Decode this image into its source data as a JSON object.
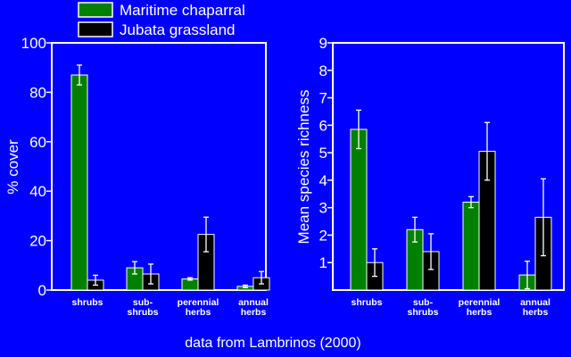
{
  "colors": {
    "background": "#0000ff",
    "axis": "#ffffff",
    "maritime": "#008000",
    "jubata": "#000000",
    "bar_outline": "#ffffff"
  },
  "legend": {
    "placement": "top-center",
    "entries": [
      "Maritime chaparral",
      "Jubata grassland"
    ]
  },
  "source_note": "data from Lambrinos (2000)",
  "chart_data": [
    {
      "type": "bar",
      "title": "",
      "xlabel": "",
      "ylabel": "% cover",
      "ylim": [
        0,
        100
      ],
      "yticks": [
        0,
        20,
        40,
        60,
        80,
        100
      ],
      "grid": false,
      "categories": [
        [
          "shrubs"
        ],
        [
          "sub-",
          "shrubs"
        ],
        [
          "perennial",
          "herbs"
        ],
        [
          "annual",
          "herbs"
        ]
      ],
      "series": [
        {
          "name": "Maritime chaparral",
          "values": [
            87,
            9,
            4.5,
            1.5
          ],
          "error": [
            4,
            2.5,
            0.5,
            0.5
          ]
        },
        {
          "name": "Jubata grassland",
          "values": [
            4,
            6.5,
            22.5,
            5
          ],
          "error": [
            2,
            4,
            7,
            2.5
          ]
        }
      ]
    },
    {
      "type": "bar",
      "title": "",
      "xlabel": "",
      "ylabel": "Mean species richness",
      "ylim": [
        0,
        9
      ],
      "yticks": [
        1,
        2,
        3,
        4,
        5,
        6,
        7,
        8,
        9
      ],
      "grid": false,
      "categories": [
        [
          "shrubs"
        ],
        [
          "sub-",
          "shrubs"
        ],
        [
          "perennial",
          "herbs"
        ],
        [
          "annual",
          "herbs"
        ]
      ],
      "series": [
        {
          "name": "Maritime chaparral",
          "values": [
            5.85,
            2.2,
            3.2,
            0.55
          ],
          "error": [
            0.7,
            0.45,
            0.2,
            0.5
          ]
        },
        {
          "name": "Jubata grassland",
          "values": [
            1.0,
            1.4,
            5.05,
            2.65
          ],
          "error": [
            0.5,
            0.65,
            1.05,
            1.4
          ]
        }
      ]
    }
  ]
}
